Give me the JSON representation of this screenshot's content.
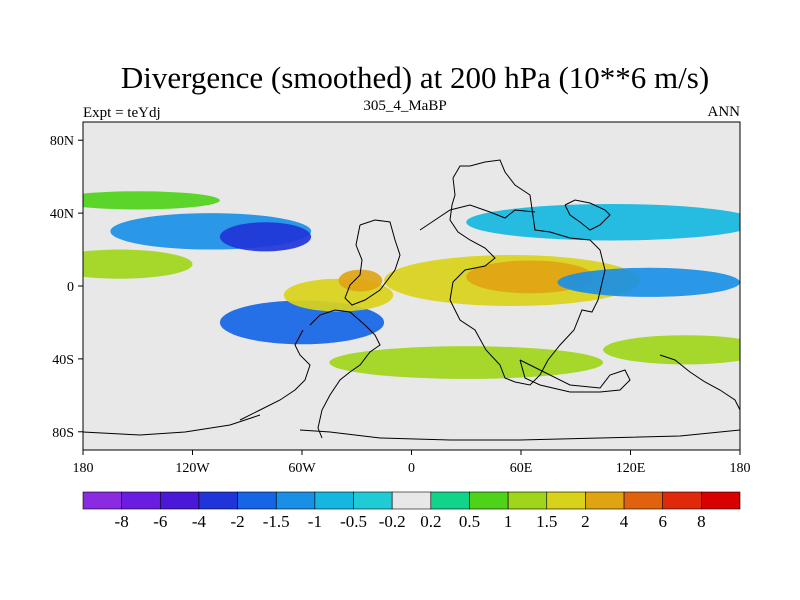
{
  "chart_data": {
    "type": "heatmap",
    "title": "Divergence (smoothed) at 200 hPa (10**6 m/s)",
    "subtitle_left": "Expt = teYdj",
    "subtitle_center": "305_4_MaBP",
    "subtitle_right": "ANN",
    "x_axis": {
      "range": [
        -180,
        180
      ],
      "ticks": [
        -180,
        -120,
        -60,
        0,
        60,
        120,
        180
      ],
      "tick_labels": [
        "180",
        "120W",
        "60W",
        "0",
        "60E",
        "120E",
        "180"
      ]
    },
    "y_axis": {
      "range": [
        -90,
        90
      ],
      "ticks": [
        80,
        40,
        0,
        -40,
        -80
      ],
      "tick_labels": [
        "80N",
        "40N",
        "0",
        "40S",
        "80S"
      ]
    },
    "colorbar": {
      "labels": [
        "-8",
        "-6",
        "-4",
        "-2",
        "-1.5",
        "-1",
        "-0.5",
        "-0.2",
        "0.2",
        "0.5",
        "1",
        "1.5",
        "2",
        "4",
        "6",
        "8"
      ],
      "colors": [
        "#8a2be2",
        "#6a1ce0",
        "#4a18d6",
        "#1f35d9",
        "#1565e6",
        "#1a8fe6",
        "#15b6e0",
        "#1fccd6",
        "#e8e8e8",
        "#11d38a",
        "#4fd21a",
        "#9fd51a",
        "#d9d21a",
        "#e0a412",
        "#e0620e",
        "#e0280a",
        "#d90000"
      ]
    },
    "regions": [
      {
        "lon": -160,
        "lat": 12,
        "rx": 40,
        "ry": 8,
        "value": 1.2
      },
      {
        "lon": -110,
        "lat": 30,
        "rx": 55,
        "ry": 10,
        "value": -1.2
      },
      {
        "lon": -80,
        "lat": 27,
        "rx": 25,
        "ry": 8,
        "value": -2.5
      },
      {
        "lon": -60,
        "lat": -20,
        "rx": 45,
        "ry": 12,
        "value": -1.8
      },
      {
        "lon": -40,
        "lat": -5,
        "rx": 30,
        "ry": 9,
        "value": 1.5
      },
      {
        "lon": -28,
        "lat": 3,
        "rx": 12,
        "ry": 6,
        "value": 2.5
      },
      {
        "lon": 55,
        "lat": 3,
        "rx": 70,
        "ry": 14,
        "value": 1.6
      },
      {
        "lon": 65,
        "lat": 5,
        "rx": 35,
        "ry": 9,
        "value": 2.5
      },
      {
        "lon": 130,
        "lat": 2,
        "rx": 50,
        "ry": 8,
        "value": -1.5
      },
      {
        "lon": 30,
        "lat": -42,
        "rx": 75,
        "ry": 9,
        "value": 1.0
      },
      {
        "lon": 150,
        "lat": -35,
        "rx": 45,
        "ry": 8,
        "value": 1.0
      },
      {
        "lon": -150,
        "lat": 47,
        "rx": 45,
        "ry": 5,
        "value": 0.8
      },
      {
        "lon": 110,
        "lat": 35,
        "rx": 80,
        "ry": 10,
        "value": -0.9
      }
    ]
  }
}
